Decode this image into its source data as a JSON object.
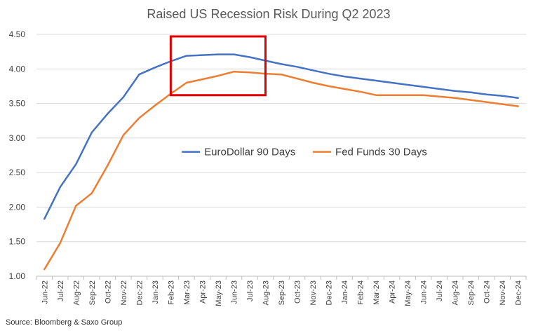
{
  "chart_data": {
    "type": "line",
    "title": "Raised US Recession Risk During Q2 2023",
    "xlabel": "",
    "ylabel": "",
    "ylim": [
      1.0,
      4.5
    ],
    "yticks": [
      "1.00",
      "1.50",
      "2.00",
      "2.50",
      "3.00",
      "3.50",
      "4.00",
      "4.50"
    ],
    "categories": [
      "Jun-22",
      "Jul-22",
      "Aug-22",
      "Sep-22",
      "Oct-22",
      "Nov-22",
      "Dec-22",
      "Jan-23",
      "Feb-23",
      "Mar-23",
      "Apr-23",
      "May-23",
      "Jun-23",
      "Jul-23",
      "Aug-23",
      "Sep-23",
      "Oct-23",
      "Nov-23",
      "Dec-23",
      "Jan-24",
      "Feb-24",
      "Mar-24",
      "Apr-24",
      "May-24",
      "Jun-24",
      "Jul-24",
      "Aug-24",
      "Sep-24",
      "Oct-24",
      "Nov-24",
      "Dec-24"
    ],
    "grid": true,
    "legend": "center",
    "series": [
      {
        "name": "EuroDollar 90 Days",
        "color": "#4472C4",
        "values": [
          1.83,
          2.29,
          2.62,
          3.08,
          3.35,
          3.59,
          3.92,
          4.02,
          4.11,
          4.19,
          4.2,
          4.21,
          4.21,
          4.17,
          4.12,
          4.07,
          4.03,
          3.98,
          3.93,
          3.89,
          3.86,
          3.83,
          3.8,
          3.77,
          3.74,
          3.71,
          3.68,
          3.66,
          3.63,
          3.61,
          3.58
        ]
      },
      {
        "name": "Fed Funds 30 Days",
        "color": "#ED7D31",
        "values": [
          1.1,
          1.48,
          2.02,
          2.2,
          2.6,
          3.04,
          3.29,
          3.47,
          3.64,
          3.8,
          3.85,
          3.9,
          3.96,
          3.95,
          3.93,
          3.92,
          3.86,
          3.8,
          3.75,
          3.71,
          3.67,
          3.62,
          3.62,
          3.62,
          3.62,
          3.6,
          3.58,
          3.55,
          3.52,
          3.49,
          3.46
        ]
      }
    ],
    "annotations": [
      {
        "type": "box",
        "color": "#E00000",
        "x_from": "Feb-23",
        "x_to": "Aug-23",
        "y_from": 3.62,
        "y_to": 4.47
      }
    ]
  },
  "source": "Source: Bloomberg & Saxo Group"
}
